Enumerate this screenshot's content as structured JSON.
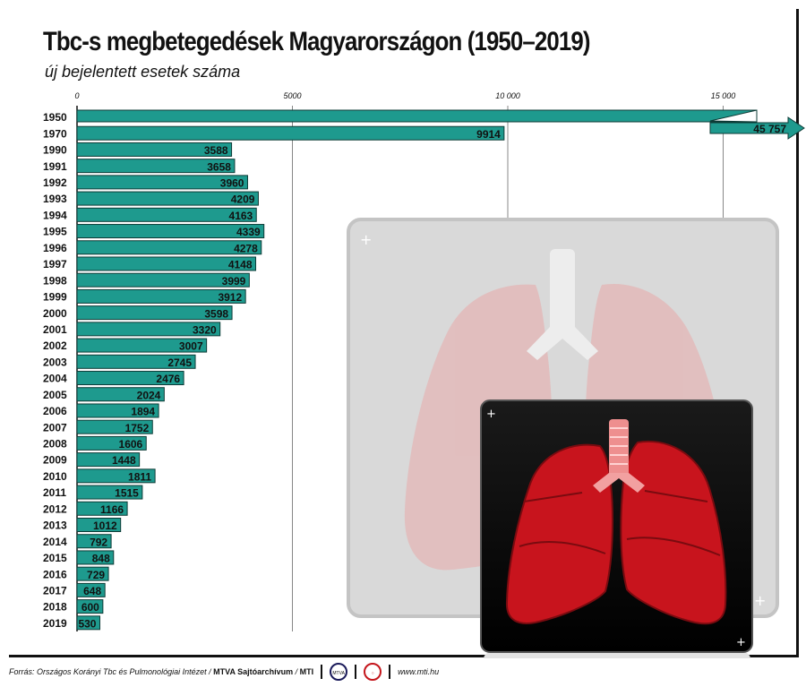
{
  "title": "Tbc-s megbetegedések Magyarországon (1950–2019)",
  "subtitle": "új bejelentett esetek száma",
  "footer": {
    "source": "Forrás: Országos Korányi Tbc és Pulmonológiai Intézet",
    "archive": "MTVA Sajtóarchívum",
    "mti": "MTI",
    "logo1": "MTVA",
    "website": "www.mti.hu"
  },
  "colors": {
    "bar": "#1e9a8e",
    "bar_border": "#0d3b36",
    "lung": "#c8141d",
    "panel": "#000000",
    "grid": "#888888"
  },
  "chart_data": {
    "type": "bar",
    "orientation": "horizontal",
    "xlim": [
      0,
      16000
    ],
    "xticks": [
      0,
      5000,
      10000,
      15000
    ],
    "xtick_labels": [
      "0",
      "5000",
      "10 000",
      "15 000"
    ],
    "grid": true,
    "categories": [
      "1950",
      "1970",
      "1990",
      "1991",
      "1992",
      "1993",
      "1994",
      "1995",
      "1996",
      "1997",
      "1998",
      "1999",
      "2000",
      "2001",
      "2002",
      "2003",
      "2004",
      "2005",
      "2006",
      "2007",
      "2008",
      "2009",
      "2010",
      "2011",
      "2012",
      "2013",
      "2014",
      "2015",
      "2016",
      "2017",
      "2018",
      "2019"
    ],
    "values": [
      45757,
      9914,
      3588,
      3658,
      3960,
      4209,
      4163,
      4339,
      4278,
      4148,
      3999,
      3912,
      3598,
      3320,
      3007,
      2745,
      2476,
      2024,
      1894,
      1752,
      1606,
      1448,
      1811,
      1515,
      1166,
      1012,
      792,
      848,
      729,
      648,
      600,
      530
    ],
    "value_labels": [
      "45 757",
      "9914",
      "3588",
      "3658",
      "3960",
      "4209",
      "4163",
      "4339",
      "4278",
      "4148",
      "3999",
      "3912",
      "3598",
      "3320",
      "3007",
      "2745",
      "2476",
      "2024",
      "1894",
      "1752",
      "1606",
      "1448",
      "1811",
      "1515",
      "1166",
      "1012",
      "792",
      "848",
      "729",
      "648",
      "600",
      "530"
    ],
    "broken_bar_index": 0
  }
}
